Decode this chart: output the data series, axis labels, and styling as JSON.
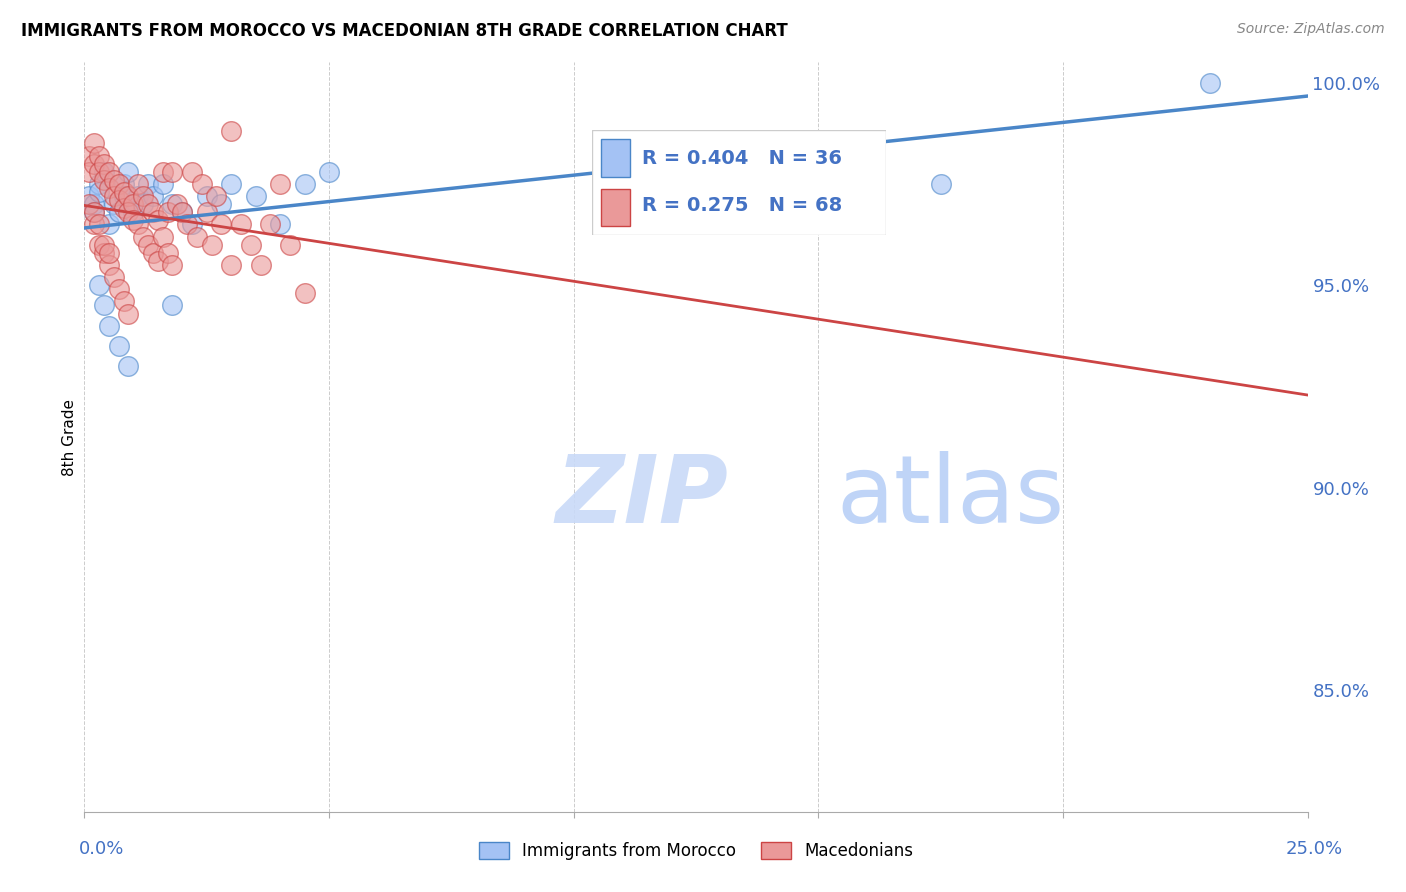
{
  "title": "IMMIGRANTS FROM MOROCCO VS MACEDONIAN 8TH GRADE CORRELATION CHART",
  "source": "Source: ZipAtlas.com",
  "ylabel": "8th Grade",
  "legend_label_blue": "Immigrants from Morocco",
  "legend_label_pink": "Macedonians",
  "legend_r_blue": "R = 0.404",
  "legend_n_blue": "N = 36",
  "legend_r_pink": "R = 0.275",
  "legend_n_pink": "N = 68",
  "blue_color": "#a4c2f4",
  "pink_color": "#ea9999",
  "blue_line_color": "#4a86c8",
  "pink_line_color": "#cc4444",
  "legend_text_color": "#4472c4",
  "watermark_zip_color": "#c9daf8",
  "watermark_atlas_color": "#a0c0e8",
  "grid_color": "#cccccc",
  "x_min": 0.0,
  "x_max": 0.25,
  "y_min": 0.82,
  "y_max": 1.005,
  "ylabel_right_positions": [
    1.0,
    0.95,
    0.9,
    0.85
  ],
  "blue_scatter_x": [
    0.001,
    0.002,
    0.002,
    0.003,
    0.003,
    0.004,
    0.005,
    0.006,
    0.007,
    0.008,
    0.008,
    0.009,
    0.01,
    0.011,
    0.012,
    0.013,
    0.014,
    0.016,
    0.018,
    0.02,
    0.022,
    0.025,
    0.028,
    0.03,
    0.035,
    0.04,
    0.045,
    0.05,
    0.003,
    0.004,
    0.005,
    0.007,
    0.009,
    0.018,
    0.23,
    0.175
  ],
  "blue_scatter_y": [
    0.972,
    0.97,
    0.968,
    0.975,
    0.973,
    0.978,
    0.965,
    0.97,
    0.968,
    0.975,
    0.972,
    0.978,
    0.968,
    0.972,
    0.97,
    0.975,
    0.972,
    0.975,
    0.97,
    0.968,
    0.965,
    0.972,
    0.97,
    0.975,
    0.972,
    0.965,
    0.975,
    0.978,
    0.95,
    0.945,
    0.94,
    0.935,
    0.93,
    0.945,
    1.0,
    0.975
  ],
  "pink_scatter_x": [
    0.001,
    0.001,
    0.002,
    0.002,
    0.003,
    0.003,
    0.004,
    0.004,
    0.005,
    0.005,
    0.006,
    0.006,
    0.007,
    0.007,
    0.008,
    0.008,
    0.009,
    0.009,
    0.01,
    0.01,
    0.011,
    0.011,
    0.012,
    0.012,
    0.013,
    0.013,
    0.014,
    0.014,
    0.015,
    0.015,
    0.016,
    0.016,
    0.017,
    0.017,
    0.018,
    0.018,
    0.019,
    0.02,
    0.021,
    0.022,
    0.023,
    0.024,
    0.025,
    0.026,
    0.027,
    0.028,
    0.03,
    0.032,
    0.034,
    0.036,
    0.038,
    0.04,
    0.042,
    0.002,
    0.003,
    0.004,
    0.005,
    0.006,
    0.007,
    0.008,
    0.009,
    0.03,
    0.045,
    0.001,
    0.002,
    0.003,
    0.004,
    0.005
  ],
  "pink_scatter_y": [
    0.982,
    0.978,
    0.985,
    0.98,
    0.982,
    0.978,
    0.98,
    0.976,
    0.978,
    0.974,
    0.976,
    0.972,
    0.975,
    0.971,
    0.973,
    0.969,
    0.972,
    0.968,
    0.97,
    0.966,
    0.975,
    0.965,
    0.972,
    0.962,
    0.97,
    0.96,
    0.968,
    0.958,
    0.966,
    0.956,
    0.978,
    0.962,
    0.968,
    0.958,
    0.978,
    0.955,
    0.97,
    0.968,
    0.965,
    0.978,
    0.962,
    0.975,
    0.968,
    0.96,
    0.972,
    0.965,
    0.988,
    0.965,
    0.96,
    0.955,
    0.965,
    0.975,
    0.96,
    0.965,
    0.96,
    0.958,
    0.955,
    0.952,
    0.949,
    0.946,
    0.943,
    0.955,
    0.948,
    0.97,
    0.968,
    0.965,
    0.96,
    0.958
  ]
}
